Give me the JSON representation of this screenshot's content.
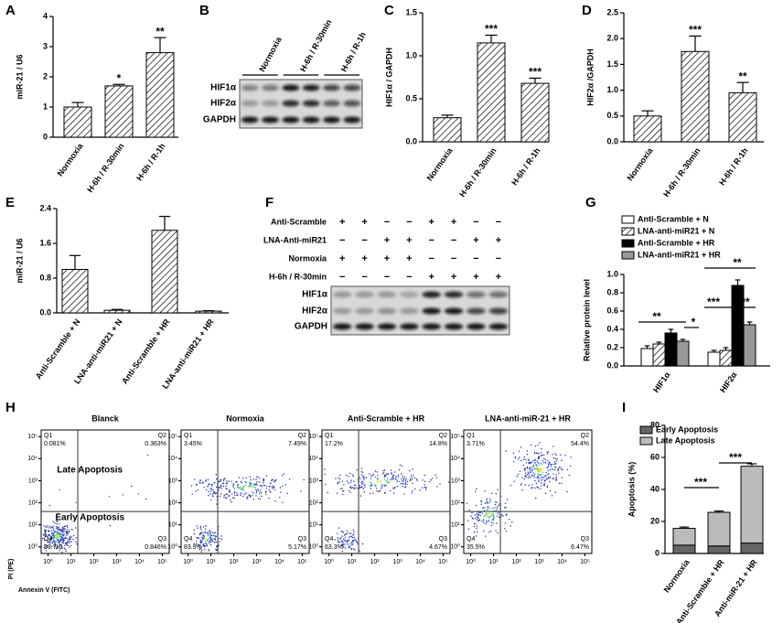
{
  "chart_data": [
    {
      "type": "bar",
      "panel": "A",
      "ylabel": "miR-21 / U6",
      "categories": [
        "Normoxia",
        "H-6h / R-30min",
        "H-6h / R-1h"
      ],
      "values": [
        1.0,
        1.7,
        2.8
      ],
      "errors": [
        0.15,
        0.05,
        0.5
      ],
      "color": "#ffffff",
      "pattern": "hatch",
      "ylim": [
        0,
        4
      ],
      "yticks": [
        0,
        1,
        2,
        3,
        4
      ],
      "significance": [
        {
          "category": "H-6h / R-30min",
          "label": "*"
        },
        {
          "category": "H-6h / R-1h",
          "label": "**"
        }
      ]
    },
    {
      "type": "bar",
      "panel": "C",
      "ylabel": "HIF1α / GAPDH",
      "categories": [
        "Normoxia",
        "H-6h / R-30min",
        "H-6h / R-1h"
      ],
      "values": [
        0.28,
        1.15,
        0.68
      ],
      "errors": [
        0.03,
        0.09,
        0.06
      ],
      "color": "#ffffff",
      "pattern": "hatch",
      "ylim": [
        0,
        1.5
      ],
      "yticks": [
        {
          "value": 0,
          "label": "0.0"
        },
        0.5,
        {
          "value": 1,
          "label": "1.0"
        },
        1.5
      ],
      "significance": [
        {
          "category": "H-6h / R-30min",
          "label": "***"
        },
        {
          "category": "H-6h / R-1h",
          "label": "***"
        }
      ]
    },
    {
      "type": "bar",
      "panel": "D",
      "ylabel": "HIF2α /GAPDH",
      "categories": [
        "Normoxia",
        "H-6h / R-30min",
        "H-6h / R-1h"
      ],
      "values": [
        0.5,
        1.75,
        0.95
      ],
      "errors": [
        0.1,
        0.3,
        0.2
      ],
      "color": "#ffffff",
      "pattern": "hatch",
      "ylim": [
        0,
        2.5
      ],
      "yticks": [
        {
          "value": 0,
          "label": "0.0"
        },
        0.5,
        {
          "value": 1,
          "label": "1.0"
        },
        1.5,
        {
          "value": 2,
          "label": "2.0"
        },
        2.5
      ],
      "significance": [
        {
          "category": "H-6h / R-30min",
          "label": "***"
        },
        {
          "category": "H-6h / R-1h",
          "label": "**"
        }
      ]
    },
    {
      "type": "bar",
      "panel": "E",
      "ylabel": "miR-21 / U6",
      "categories": [
        "Anti-Scramble + N",
        "LNA-anti-miR21 + N",
        "Anti-Scramble + HR",
        "LNA-anti-miR21 + HR"
      ],
      "values": [
        1.0,
        0.06,
        1.9,
        0.04
      ],
      "errors": [
        0.32,
        0.02,
        0.32,
        0.01
      ],
      "color": "#ffffff",
      "pattern": "hatch",
      "ylim": [
        0,
        2.4
      ],
      "yticks": [
        {
          "value": 0,
          "label": "0.0"
        },
        0.8,
        1.6,
        2.4
      ]
    },
    {
      "type": "grouped_bar",
      "panel": "G",
      "ylabel": "Relative protein level",
      "categories": [
        "HIF1α",
        "HIF2α"
      ],
      "series": [
        {
          "name": "Anti-Scramble + N",
          "color": "#ffffff",
          "values": [
            0.19,
            0.15
          ],
          "errors": [
            0.03,
            0.02
          ]
        },
        {
          "name": "LNA-anti-miR21 + N",
          "color": "#ffffff",
          "pattern": "hatch",
          "values": [
            0.24,
            0.17
          ],
          "errors": [
            0.02,
            0.03
          ]
        },
        {
          "name": "Anti-Scramble + HR",
          "color": "#000000",
          "values": [
            0.36,
            0.88
          ],
          "errors": [
            0.04,
            0.06
          ]
        },
        {
          "name": "LNA-anti-miR21 + HR",
          "color": "#999999",
          "values": [
            0.27,
            0.45
          ],
          "errors": [
            0.02,
            0.03
          ]
        }
      ],
      "ylim": [
        0,
        1.0
      ],
      "yticks": [
        {
          "value": 0,
          "label": "0.0"
        },
        0.2,
        0.4,
        0.6,
        0.8,
        {
          "value": 1,
          "label": "1.0"
        }
      ],
      "legend": "top",
      "annotations": [
        "**",
        "*",
        "**",
        "***",
        "**"
      ]
    },
    {
      "type": "flow",
      "panel": "H",
      "xlabel": "Annexin V (FITC)",
      "ylabel": "PI (PE)",
      "log": true,
      "xlim": [
        0.5,
        200000
      ],
      "ylim": [
        0.5,
        200000
      ],
      "gate_x": 20,
      "gate_y": 40,
      "xticks": [
        {
          "value": 1,
          "label": "10⁰"
        },
        {
          "value": 10,
          "label": "10¹"
        },
        {
          "value": 100,
          "label": "10²"
        },
        {
          "value": 1000,
          "label": "10³"
        },
        {
          "value": 10000,
          "label": "10⁴"
        },
        {
          "value": 100000,
          "label": "10⁵"
        }
      ],
      "yticks": [
        {
          "value": 1,
          "label": "10⁰"
        },
        {
          "value": 10,
          "label": "10¹"
        },
        {
          "value": 100,
          "label": "10²"
        },
        {
          "value": 1000,
          "label": "10³"
        },
        {
          "value": 10000,
          "label": "10⁴"
        },
        {
          "value": 100000,
          "label": "10⁵"
        }
      ],
      "annotations": [
        "Late Apoptosis",
        "Early Apoptosis"
      ],
      "plots": [
        {
          "title": "Blanck",
          "quadrants": [
            {
              "name": "Q1",
              "percent": "0.081%"
            },
            {
              "name": "Q2",
              "percent": "0.363%"
            },
            {
              "name": "Q3",
              "percent": "0.846%"
            },
            {
              "name": "Q4",
              "percent": "98.7%"
            }
          ]
        },
        {
          "title": "Normoxia",
          "quadrants": [
            {
              "name": "Q1",
              "percent": "3.45%"
            },
            {
              "name": "Q2",
              "percent": "7.49%"
            },
            {
              "name": "Q3",
              "percent": "5.17%"
            },
            {
              "name": "Q4",
              "percent": "83.9%"
            }
          ]
        },
        {
          "title": "Anti-Scramble + HR",
          "quadrants": [
            {
              "name": "Q1",
              "percent": "17.2%"
            },
            {
              "name": "Q2",
              "percent": "14.8%"
            },
            {
              "name": "Q3",
              "percent": "4.67%"
            },
            {
              "name": "Q4",
              "percent": "63.3%"
            }
          ]
        },
        {
          "title": "LNA-anti-miR-21 + HR",
          "quadrants": [
            {
              "name": "Q1",
              "percent": "3.71%"
            },
            {
              "name": "Q2",
              "percent": "54.4%"
            },
            {
              "name": "Q3",
              "percent": "6.47%"
            },
            {
              "name": "Q4",
              "percent": "35.5%"
            }
          ]
        }
      ]
    },
    {
      "type": "stacked_bar",
      "panel": "I",
      "ylabel": "Apoptosis (%)",
      "categories": [
        "Normoxia",
        "Anti-Scramble + HR",
        "Anti-miR-21 + HR"
      ],
      "series": [
        {
          "name": "Early Apoptosis",
          "color": "#666666",
          "values": [
            5.2,
            4.7,
            6.5
          ],
          "errors": [
            0.8,
            0.8,
            2.0
          ]
        },
        {
          "name": "Late Apoptosis",
          "color": "#bbbbbb",
          "values": [
            10.5,
            21,
            48
          ],
          "errors": [
            0.8,
            0.8,
            1.5
          ]
        }
      ],
      "ylim": [
        0,
        80
      ],
      "yticks": [
        0,
        20,
        40,
        60,
        80
      ],
      "legend": "top",
      "annotations": [
        "***",
        "***"
      ]
    }
  ],
  "blots": [
    {
      "panel": "B",
      "lanes": [
        "Normoxia",
        "H-6h / R-30min",
        "H-6h / R-1h"
      ],
      "rows": [
        "HIF1α",
        "HIF2α",
        "GAPDH"
      ]
    },
    {
      "panel": "F",
      "conditions": [
        {
          "name": "Anti-Scramble",
          "marks": [
            "+",
            "+",
            "−",
            "−",
            "+",
            "+",
            "−",
            "−"
          ]
        },
        {
          "name": "LNA-Anti-miR21",
          "marks": [
            "−",
            "−",
            "+",
            "+",
            "−",
            "−",
            "+",
            "+"
          ]
        },
        {
          "name": "Normoxia",
          "marks": [
            "+",
            "+",
            "+",
            "+",
            "−",
            "−",
            "−",
            "−"
          ]
        },
        {
          "name": "H-6h / R-30min",
          "marks": [
            "−",
            "−",
            "−",
            "−",
            "+",
            "+",
            "+",
            "+"
          ]
        }
      ],
      "rows": [
        "HIF1α",
        "HIF2α",
        "GAPDH"
      ]
    }
  ]
}
